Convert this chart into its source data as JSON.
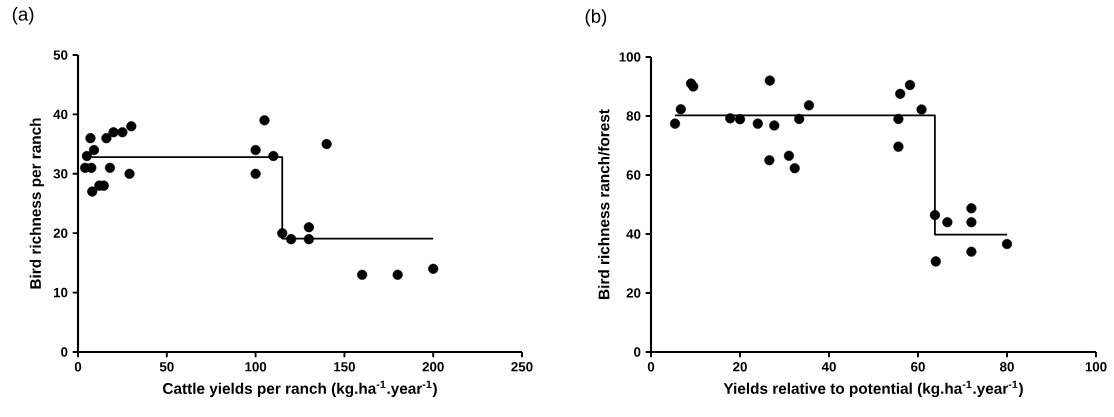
{
  "chart_data": [
    {
      "type": "scatter",
      "title": "(a)",
      "xlabel": "Cattle yields per ranch (kg.ha$^{-1}$.year$^{-1}$)",
      "ylabel": "Bird richness per ranch",
      "xlim": [
        0,
        250
      ],
      "xticks": [
        0,
        50,
        100,
        150,
        200,
        250
      ],
      "ylim": [
        0,
        50
      ],
      "yticks": [
        0,
        10,
        20,
        30,
        40,
        50
      ],
      "grid": false,
      "series": [
        {
          "marker": "circle",
          "color": "#000000",
          "x": [
            4,
            7.5,
            5,
            7,
            9,
            8,
            12,
            14.5,
            16,
            20,
            25,
            30,
            18,
            29,
            100,
            100,
            105,
            110,
            140,
            115,
            120,
            130,
            130,
            160,
            180,
            200
          ],
          "values": [
            31,
            31,
            33,
            36,
            34,
            27,
            28,
            28,
            36,
            37,
            37,
            38,
            31,
            30,
            34,
            30,
            39,
            33,
            35,
            20,
            19,
            21,
            19,
            13,
            13,
            14
          ]
        },
        {
          "type": "line",
          "marker": "none",
          "line_style": "solid",
          "color": "#000000",
          "x": [
            7.5,
            115,
            115,
            200
          ],
          "values": [
            32.8,
            32.8,
            19.1,
            19.1
          ]
        }
      ]
    },
    {
      "type": "scatter",
      "title": "(b)",
      "xlabel": "Yields relative to potential (kg.ha$^{-1}$.year$^{-1}$)",
      "ylabel": "Bird richness ranch/forest",
      "xlim": [
        0,
        100
      ],
      "xticks": [
        0,
        20,
        40,
        60,
        80,
        100
      ],
      "ylim": [
        0,
        100
      ],
      "yticks": [
        0,
        20,
        40,
        60,
        80,
        100
      ],
      "grid": false,
      "series": [
        {
          "marker": "circle",
          "color": "#000000",
          "x": [
            5.4,
            6.7,
            9,
            9.5,
            17.8,
            20,
            24,
            26.7,
            27.7,
            26.6,
            31,
            32.3,
            33.3,
            35.5,
            55.6,
            55.6,
            56,
            58.2,
            60.8,
            63.8,
            64,
            66.6,
            72,
            72,
            72,
            80
          ],
          "values": [
            77.4,
            82.3,
            91,
            90,
            79.2,
            78.9,
            77.4,
            92,
            76.8,
            65,
            66.5,
            62.3,
            79,
            83.6,
            79,
            69.6,
            87.5,
            90.5,
            82.2,
            46.4,
            30.7,
            44,
            48.7,
            44,
            34,
            36.6
          ]
        },
        {
          "type": "line",
          "marker": "none",
          "line_style": "solid",
          "color": "#000000",
          "x": [
            5.4,
            63.8,
            63.8,
            80
          ],
          "values": [
            80.2,
            80.2,
            39.8,
            39.8
          ]
        }
      ]
    }
  ]
}
